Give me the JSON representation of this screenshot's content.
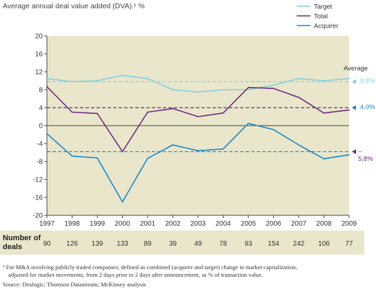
{
  "title": "Average annual deal value added (DVA).¹ %",
  "legend": [
    {
      "name": "Target",
      "color": "#7fd0df"
    },
    {
      "name": "Total",
      "color": "#6b2a7d"
    },
    {
      "name": "Acquirer",
      "color": "#1a86c7"
    }
  ],
  "average_label": "Average",
  "averages": [
    {
      "series": "Target",
      "value": 9.8,
      "label": "9.8%",
      "color": "#7fd0df"
    },
    {
      "series": "Total",
      "value": 4.0,
      "label": "4.0%",
      "color": "#1a86c7"
    },
    {
      "series": "Acquirer",
      "value": -5.8,
      "label": "–5.8%",
      "color": "#6b2a7d"
    }
  ],
  "deals": {
    "label_line1": "Number of",
    "label_line2": "deals",
    "values": [
      "90",
      "126",
      "139",
      "133",
      "89",
      "39",
      "49",
      "78",
      "93",
      "154",
      "242",
      "106",
      "77"
    ]
  },
  "footnote_lines": [
    "¹ For M&A involving publicly traded companies; defined as combined (acquirer and target) change in market capitalization,",
    "   adjusted for market movements, from 2 days prior to 2 days after announcement, as % of transaction value."
  ],
  "source": "Source: Dealogic; Thomson Datastream; McKinsey analysis",
  "chart_data": {
    "type": "line",
    "categories": [
      "1997",
      "1998",
      "1999",
      "2000",
      "2001",
      "2002",
      "2003",
      "2004",
      "2005",
      "2006",
      "2007",
      "2008",
      "2009"
    ],
    "ylim": [
      -20,
      20
    ],
    "yticks": [
      20,
      16,
      12,
      8,
      4,
      0,
      -4,
      -8,
      -12,
      -16,
      -20
    ],
    "series": [
      {
        "name": "Target",
        "color": "#7fd0df",
        "values": [
          10.5,
          9.8,
          10.0,
          11.2,
          10.5,
          8.0,
          7.5,
          8.0,
          8.0,
          9.0,
          10.5,
          10.0,
          10.5
        ]
      },
      {
        "name": "Total",
        "color": "#6b2a7d",
        "values": [
          8.7,
          3.0,
          2.7,
          -5.8,
          3.0,
          3.8,
          2.0,
          2.8,
          8.5,
          8.3,
          6.3,
          2.8,
          3.5
        ]
      },
      {
        "name": "Acquirer",
        "color": "#1a86c7",
        "values": [
          -1.8,
          -6.8,
          -7.2,
          -17.0,
          -7.3,
          -4.3,
          -5.6,
          -5.2,
          0.5,
          -0.9,
          -4.3,
          -7.4,
          -6.5
        ]
      }
    ],
    "reference_lines": [
      {
        "value": 9.8,
        "color": "#7fd0df"
      },
      {
        "value": 4.0,
        "color": "#6b2a7d"
      },
      {
        "value": -5.8,
        "color": "#1a86c7"
      }
    ],
    "grid": false,
    "legend_position": "top-right"
  }
}
